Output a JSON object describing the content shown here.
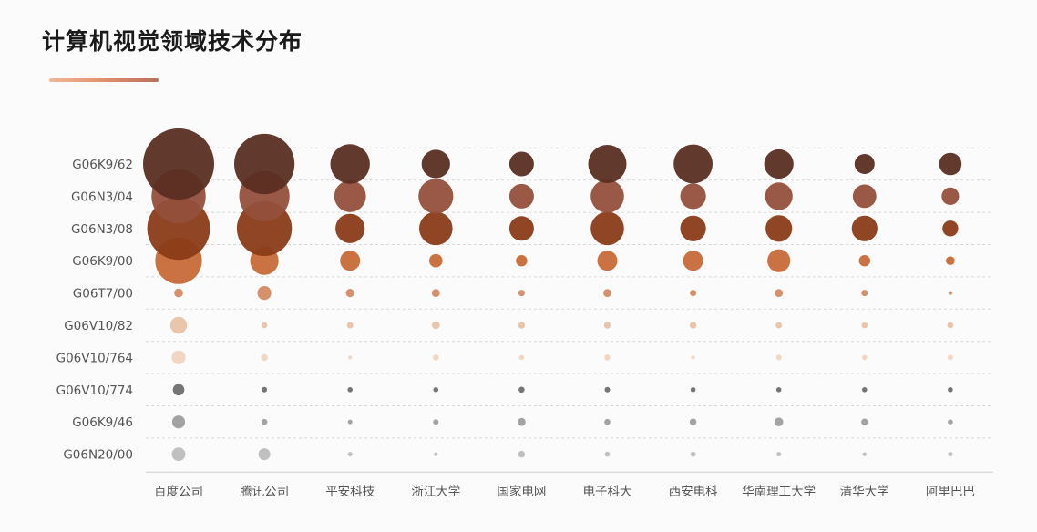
{
  "chart_data": {
    "type": "bubble-matrix",
    "title": "计算机视觉领域技术分布",
    "xlabel": "",
    "ylabel": "",
    "grid": true,
    "legend": "none",
    "categories": [
      "百度公司",
      "腾讯公司",
      "平安科技",
      "浙江大学",
      "国家电网",
      "电子科大",
      "西安电科",
      "华南理工大学",
      "清华大学",
      "阿里巴巴"
    ],
    "rows": [
      {
        "name": "G06K9/62",
        "color": "#5a2e22",
        "values": [
          1000,
          720,
          310,
          160,
          120,
          290,
          300,
          170,
          80,
          100
        ]
      },
      {
        "name": "G06N3/04",
        "color": "#94503c",
        "values": [
          580,
          500,
          200,
          240,
          120,
          220,
          130,
          150,
          110,
          60
        ]
      },
      {
        "name": "G06N3/08",
        "color": "#8a3c18",
        "values": [
          780,
          600,
          170,
          220,
          120,
          220,
          130,
          140,
          130,
          50
        ]
      },
      {
        "name": "G06K9/00",
        "color": "#c86a38",
        "values": [
          430,
          160,
          80,
          35,
          25,
          80,
          80,
          105,
          25,
          15
        ]
      },
      {
        "name": "G06T7/00",
        "color": "#d48a64",
        "values": [
          15,
          38,
          14,
          13,
          8,
          13,
          8,
          13,
          8,
          3
        ]
      },
      {
        "name": "G06V10/82",
        "color": "#e8c2a8",
        "values": [
          56,
          7,
          8,
          12,
          9,
          9,
          9,
          8,
          7,
          7
        ]
      },
      {
        "name": "G06V10/764",
        "color": "#f0d4c0",
        "values": [
          38,
          9,
          3,
          7,
          5,
          7,
          3,
          6,
          5,
          6
        ]
      },
      {
        "name": "G06V10/774",
        "color": "#6e6e6e",
        "values": [
          26,
          6,
          5,
          5,
          7,
          6,
          5,
          5,
          5,
          5
        ]
      },
      {
        "name": "G06K9/46",
        "color": "#9e9e9e",
        "values": [
          33,
          7,
          4,
          6,
          13,
          7,
          9,
          15,
          9,
          5
        ]
      },
      {
        "name": "G06N20/00",
        "color": "#bdbdbd",
        "values": [
          36,
          28,
          4,
          3,
          9,
          5,
          5,
          4,
          3,
          4
        ]
      }
    ]
  }
}
